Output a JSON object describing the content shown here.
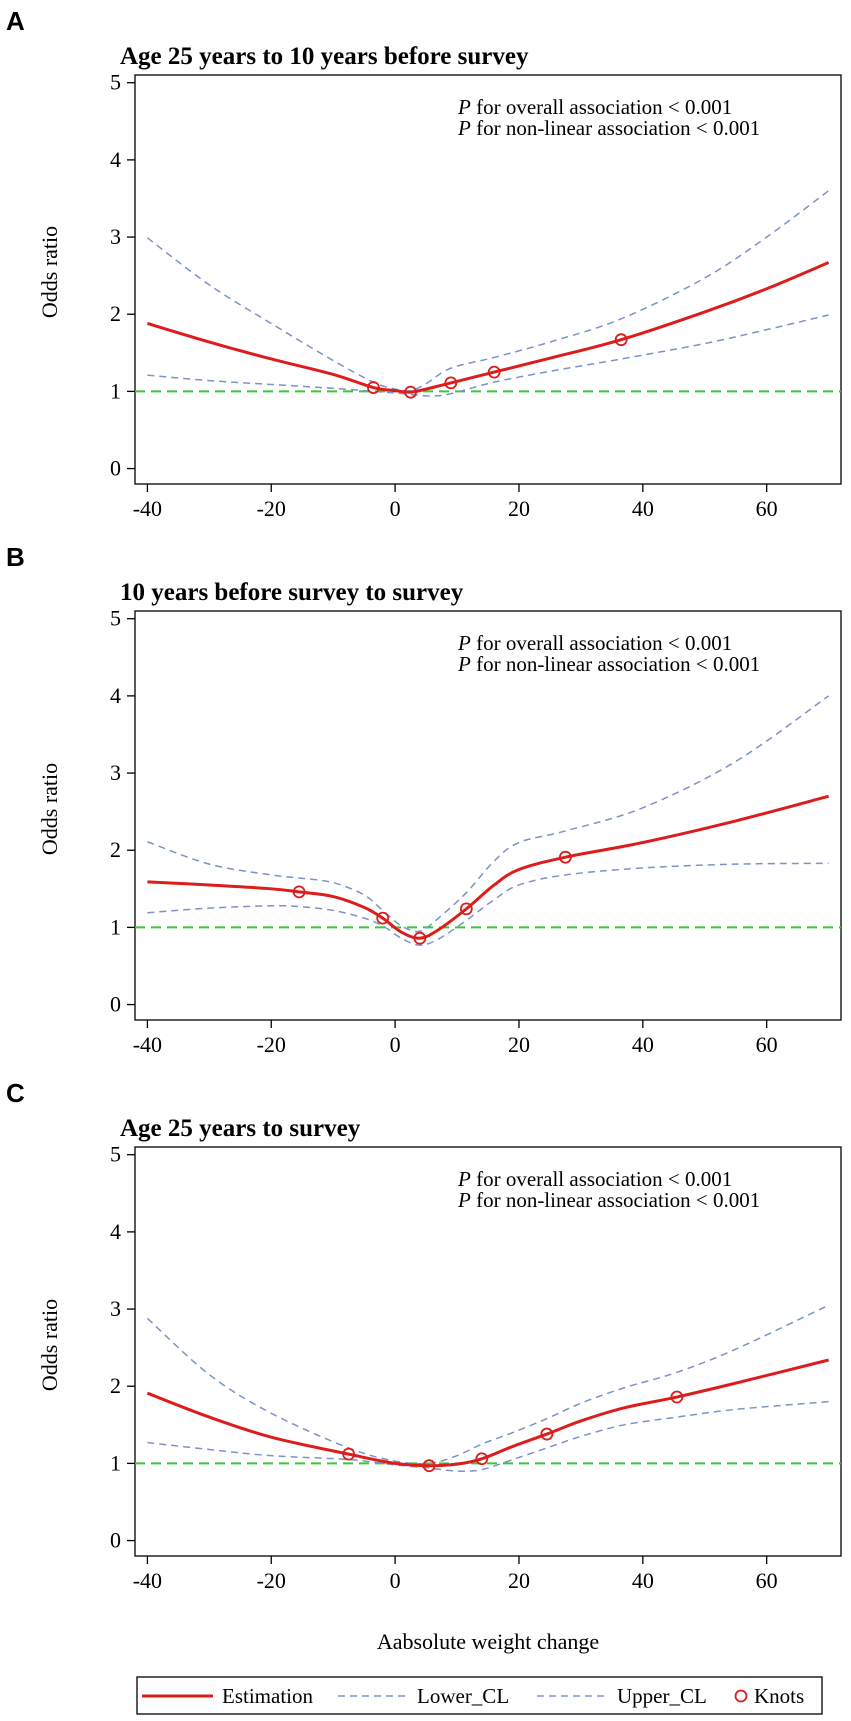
{
  "figure": {
    "x_axis_label": "Aabsolute weight change",
    "legend": [
      {
        "key": "estimation",
        "label": "Estimation",
        "color": "#dd1c1c",
        "style": "solid"
      },
      {
        "key": "lower",
        "label": "Lower_CL",
        "color": "#7b93c9",
        "style": "dashed"
      },
      {
        "key": "upper",
        "label": "Upper_CL",
        "color": "#7b93c9",
        "style": "dashed"
      },
      {
        "key": "knots",
        "label": "Knots",
        "color": "#dd1c1c",
        "style": "circle"
      }
    ],
    "colors": {
      "estimate": "#dd1c1c",
      "ci": "#7b93c9",
      "reference": "#33cc33"
    }
  },
  "chart_data": [
    {
      "type": "line",
      "letter": "A",
      "title": "Age 25 years to 10 years before survey",
      "annotation_prefix": "P",
      "annotation_line1": " for overall association < 0.001",
      "annotation_line2": " for non-linear association < 0.001",
      "xlabel": "Aabsolute weight change",
      "ylabel": "Odds ratio",
      "xlim": [
        -42,
        72
      ],
      "ylim": [
        -0.2,
        5.1
      ],
      "xticks": [
        -40,
        -20,
        0,
        20,
        40,
        60
      ],
      "yticks": [
        0,
        1,
        2,
        3,
        4,
        5
      ],
      "reference_y": 1,
      "series": [
        {
          "name": "Estimation",
          "x": [
            -40,
            -30,
            -20,
            -10,
            -3.5,
            0,
            2.5,
            5,
            9,
            16,
            25,
            36.5,
            50,
            60,
            70
          ],
          "y": [
            1.88,
            1.64,
            1.42,
            1.22,
            1.05,
            1.01,
            0.99,
            1.03,
            1.11,
            1.25,
            1.43,
            1.67,
            2.03,
            2.33,
            2.67
          ]
        },
        {
          "name": "Lower_CL",
          "x": [
            -40,
            -30,
            -20,
            -10,
            -3.5,
            0,
            2.5,
            6,
            9,
            16,
            25,
            36.5,
            50,
            60,
            70
          ],
          "y": [
            1.21,
            1.14,
            1.09,
            1.04,
            1.0,
            0.98,
            0.96,
            0.94,
            0.97,
            1.12,
            1.26,
            1.42,
            1.62,
            1.8,
            1.99
          ]
        },
        {
          "name": "Upper_CL",
          "x": [
            -40,
            -30,
            -20,
            -10,
            -3.5,
            0,
            2.5,
            5,
            9,
            16,
            25,
            36.5,
            50,
            60,
            70
          ],
          "y": [
            2.99,
            2.38,
            1.88,
            1.4,
            1.12,
            1.03,
            1.01,
            1.1,
            1.3,
            1.44,
            1.64,
            1.94,
            2.47,
            3.0,
            3.6
          ]
        }
      ],
      "knots": [
        {
          "x": -3.5,
          "y": 1.05
        },
        {
          "x": 2.5,
          "y": 0.99
        },
        {
          "x": 9,
          "y": 1.11
        },
        {
          "x": 16,
          "y": 1.25
        },
        {
          "x": 36.5,
          "y": 1.67
        }
      ]
    },
    {
      "type": "line",
      "letter": "B",
      "title": "10 years before survey to survey",
      "annotation_prefix": "P",
      "annotation_line1": " for overall association < 0.001",
      "annotation_line2": " for non-linear association < 0.001",
      "xlabel": "Aabsolute weight change",
      "ylabel": "Odds ratio",
      "xlim": [
        -42,
        72
      ],
      "ylim": [
        -0.2,
        5.1
      ],
      "xticks": [
        -40,
        -20,
        0,
        20,
        40,
        60
      ],
      "yticks": [
        0,
        1,
        2,
        3,
        4,
        5
      ],
      "reference_y": 1,
      "series": [
        {
          "name": "Estimation",
          "x": [
            -40,
            -30,
            -20,
            -15.5,
            -10,
            -5,
            -2,
            1,
            4,
            7,
            11.5,
            16,
            20,
            27.5,
            40,
            55,
            70
          ],
          "y": [
            1.59,
            1.55,
            1.5,
            1.46,
            1.4,
            1.26,
            1.12,
            0.94,
            0.86,
            0.97,
            1.24,
            1.55,
            1.75,
            1.91,
            2.1,
            2.38,
            2.7
          ]
        },
        {
          "name": "Lower_CL",
          "x": [
            -40,
            -30,
            -20,
            -15.5,
            -10,
            -5,
            -2,
            1,
            4,
            7,
            11.5,
            16,
            20,
            27.5,
            40,
            55,
            70
          ],
          "y": [
            1.19,
            1.25,
            1.28,
            1.27,
            1.22,
            1.12,
            1.02,
            0.86,
            0.77,
            0.85,
            1.09,
            1.36,
            1.55,
            1.68,
            1.77,
            1.82,
            1.83
          ]
        },
        {
          "name": "Upper_CL",
          "x": [
            -40,
            -30,
            -20,
            -15.5,
            -10,
            -5,
            -2,
            1,
            4,
            7,
            11.5,
            16,
            20,
            27.5,
            40,
            55,
            70
          ],
          "y": [
            2.11,
            1.82,
            1.68,
            1.64,
            1.58,
            1.42,
            1.22,
            1.02,
            0.95,
            1.12,
            1.45,
            1.86,
            2.1,
            2.25,
            2.55,
            3.15,
            4.0
          ]
        }
      ],
      "knots": [
        {
          "x": -15.5,
          "y": 1.46
        },
        {
          "x": -2,
          "y": 1.12
        },
        {
          "x": 4,
          "y": 0.86
        },
        {
          "x": 11.5,
          "y": 1.24
        },
        {
          "x": 27.5,
          "y": 1.91
        }
      ]
    },
    {
      "type": "line",
      "letter": "C",
      "title": "Age 25 years to survey",
      "annotation_prefix": "P",
      "annotation_line1": " for overall association < 0.001",
      "annotation_line2": " for non-linear association < 0.001",
      "xlabel": "Aabsolute weight change",
      "ylabel": "Odds ratio",
      "xlim": [
        -42,
        72
      ],
      "ylim": [
        -0.2,
        5.1
      ],
      "xticks": [
        -40,
        -20,
        0,
        20,
        40,
        60
      ],
      "yticks": [
        0,
        1,
        2,
        3,
        4,
        5
      ],
      "reference_y": 1,
      "series": [
        {
          "name": "Estimation",
          "x": [
            -40,
            -30,
            -20,
            -7.5,
            0,
            5.5,
            10,
            14,
            19,
            24.5,
            30,
            37,
            45.5,
            55,
            70
          ],
          "y": [
            1.91,
            1.6,
            1.34,
            1.12,
            1.0,
            0.97,
            0.99,
            1.06,
            1.22,
            1.38,
            1.55,
            1.72,
            1.86,
            2.04,
            2.34
          ]
        },
        {
          "name": "Lower_CL",
          "x": [
            -40,
            -30,
            -20,
            -7.5,
            0,
            5.5,
            10,
            14,
            19,
            24.5,
            30,
            37,
            45.5,
            55,
            70
          ],
          "y": [
            1.27,
            1.18,
            1.1,
            1.05,
            0.98,
            0.94,
            0.9,
            0.92,
            1.05,
            1.2,
            1.35,
            1.5,
            1.6,
            1.7,
            1.8
          ]
        },
        {
          "name": "Upper_CL",
          "x": [
            -40,
            -30,
            -20,
            -7.5,
            0,
            5.5,
            10,
            14,
            19,
            24.5,
            30,
            37,
            45.5,
            55,
            70
          ],
          "y": [
            2.88,
            2.15,
            1.65,
            1.2,
            1.03,
            1.0,
            1.1,
            1.25,
            1.4,
            1.58,
            1.78,
            1.98,
            2.18,
            2.48,
            3.05
          ]
        }
      ],
      "knots": [
        {
          "x": -7.5,
          "y": 1.12
        },
        {
          "x": 5.5,
          "y": 0.97
        },
        {
          "x": 14,
          "y": 1.06
        },
        {
          "x": 24.5,
          "y": 1.38
        },
        {
          "x": 45.5,
          "y": 1.86
        }
      ]
    }
  ]
}
